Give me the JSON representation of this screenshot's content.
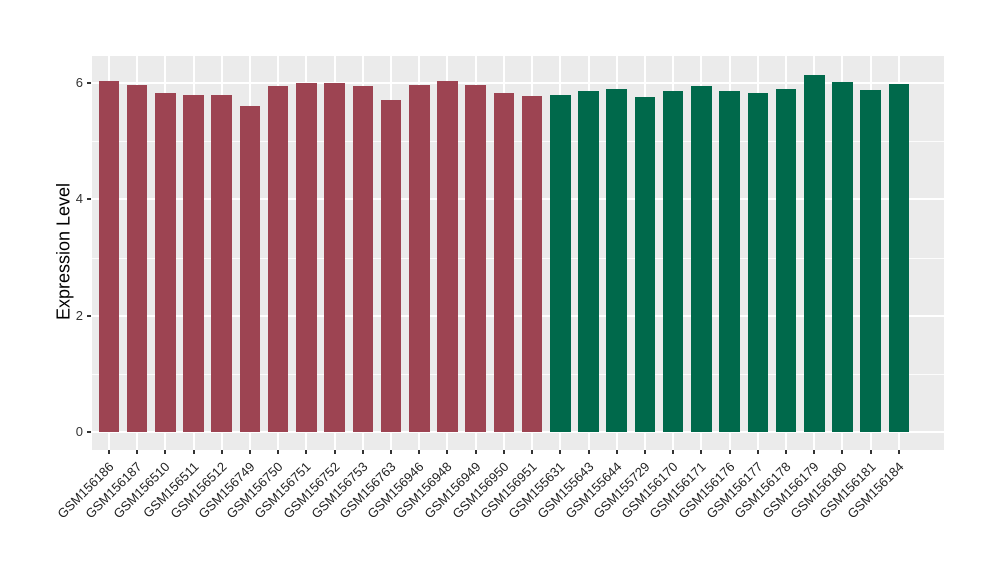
{
  "chart_data": {
    "type": "bar",
    "title": "",
    "xlabel": "",
    "ylabel": "Expression Level",
    "y_ticks": [
      0,
      2,
      4,
      6
    ],
    "y_minor_ticks": [
      1,
      3,
      5
    ],
    "ylim": [
      0,
      6.46
    ],
    "grid": true,
    "legend": false,
    "panel_bg_color": "#EBEBEB",
    "grid_color": "#FFFFFF",
    "tick_color": "#333333",
    "group_colors": {
      "groupA": "#9D4452",
      "groupB": "#00694B"
    },
    "bars": [
      {
        "label": "GSM156186",
        "value": 6.03,
        "group": "groupA"
      },
      {
        "label": "GSM156187",
        "value": 5.97,
        "group": "groupA"
      },
      {
        "label": "GSM156510",
        "value": 5.82,
        "group": "groupA"
      },
      {
        "label": "GSM156511",
        "value": 5.8,
        "group": "groupA"
      },
      {
        "label": "GSM156512",
        "value": 5.79,
        "group": "groupA"
      },
      {
        "label": "GSM156749",
        "value": 5.6,
        "group": "groupA"
      },
      {
        "label": "GSM156750",
        "value": 5.95,
        "group": "groupA"
      },
      {
        "label": "GSM156751",
        "value": 6.0,
        "group": "groupA"
      },
      {
        "label": "GSM156752",
        "value": 6.0,
        "group": "groupA"
      },
      {
        "label": "GSM156753",
        "value": 5.95,
        "group": "groupA"
      },
      {
        "label": "GSM156763",
        "value": 5.71,
        "group": "groupA"
      },
      {
        "label": "GSM156946",
        "value": 5.96,
        "group": "groupA"
      },
      {
        "label": "GSM156948",
        "value": 6.03,
        "group": "groupA"
      },
      {
        "label": "GSM156949",
        "value": 5.96,
        "group": "groupA"
      },
      {
        "label": "GSM156950",
        "value": 5.83,
        "group": "groupA"
      },
      {
        "label": "GSM156951",
        "value": 5.77,
        "group": "groupA"
      },
      {
        "label": "GSM155631",
        "value": 5.8,
        "group": "groupB"
      },
      {
        "label": "GSM155643",
        "value": 5.87,
        "group": "groupB"
      },
      {
        "label": "GSM155644",
        "value": 5.9,
        "group": "groupB"
      },
      {
        "label": "GSM155729",
        "value": 5.76,
        "group": "groupB"
      },
      {
        "label": "GSM156170",
        "value": 5.86,
        "group": "groupB"
      },
      {
        "label": "GSM156171",
        "value": 5.94,
        "group": "groupB"
      },
      {
        "label": "GSM156176",
        "value": 5.87,
        "group": "groupB"
      },
      {
        "label": "GSM156177",
        "value": 5.83,
        "group": "groupB"
      },
      {
        "label": "GSM156178",
        "value": 5.9,
        "group": "groupB"
      },
      {
        "label": "GSM156179",
        "value": 6.13,
        "group": "groupB"
      },
      {
        "label": "GSM156180",
        "value": 6.01,
        "group": "groupB"
      },
      {
        "label": "GSM156181",
        "value": 5.88,
        "group": "groupB"
      },
      {
        "label": "GSM156184",
        "value": 5.99,
        "group": "groupB"
      }
    ]
  }
}
